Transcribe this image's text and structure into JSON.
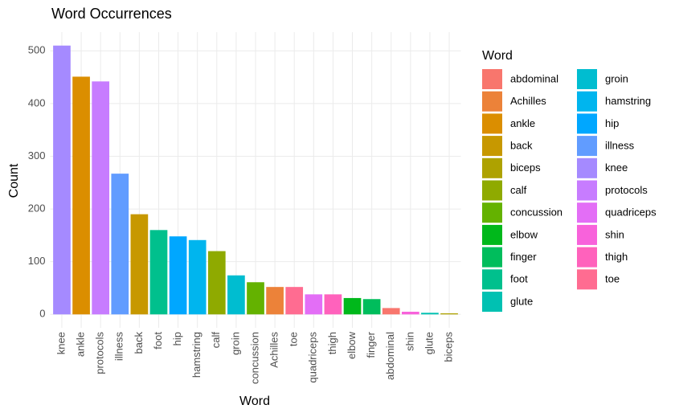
{
  "chart_data": {
    "type": "bar",
    "title": "Word Occurrences",
    "x_label": "Word",
    "y_label": "Count",
    "categories": [
      "knee",
      "ankle",
      "protocols",
      "illness",
      "back",
      "foot",
      "hip",
      "hamstring",
      "calf",
      "groin",
      "concussion",
      "Achilles",
      "toe",
      "quadriceps",
      "thigh",
      "elbow",
      "finger",
      "abdominal",
      "shin",
      "glute",
      "biceps"
    ],
    "values": [
      510,
      451,
      442,
      267,
      190,
      160,
      148,
      141,
      120,
      74,
      61,
      52,
      52,
      38,
      38,
      31,
      29,
      12,
      5,
      3,
      2
    ],
    "ylim": [
      -25.5,
      535.5
    ],
    "yticks": [
      0,
      100,
      200,
      300,
      400,
      500
    ],
    "grid": true,
    "legend": {
      "title": "Word",
      "entries": [
        {
          "name": "abdominal",
          "color": "#F8766D"
        },
        {
          "name": "Achilles",
          "color": "#EC8239"
        },
        {
          "name": "ankle",
          "color": "#DB8E00"
        },
        {
          "name": "back",
          "color": "#C79800"
        },
        {
          "name": "biceps",
          "color": "#AEA200"
        },
        {
          "name": "calf",
          "color": "#8FAA00"
        },
        {
          "name": "concussion",
          "color": "#64B200"
        },
        {
          "name": "elbow",
          "color": "#00B81B"
        },
        {
          "name": "finger",
          "color": "#00BD5C"
        },
        {
          "name": "foot",
          "color": "#00C08D"
        },
        {
          "name": "glute",
          "color": "#00C1B2"
        },
        {
          "name": "groin",
          "color": "#00BDD0"
        },
        {
          "name": "hamstring",
          "color": "#00B5EE"
        },
        {
          "name": "hip",
          "color": "#00A7FF"
        },
        {
          "name": "illness",
          "color": "#619CFF"
        },
        {
          "name": "knee",
          "color": "#A58AFF"
        },
        {
          "name": "protocols",
          "color": "#C77CFF"
        },
        {
          "name": "quadriceps",
          "color": "#E36EF6"
        },
        {
          "name": "shin",
          "color": "#F862DB"
        },
        {
          "name": "thigh",
          "color": "#FF62BC"
        },
        {
          "name": "toe",
          "color": "#FF6C91"
        }
      ]
    }
  }
}
